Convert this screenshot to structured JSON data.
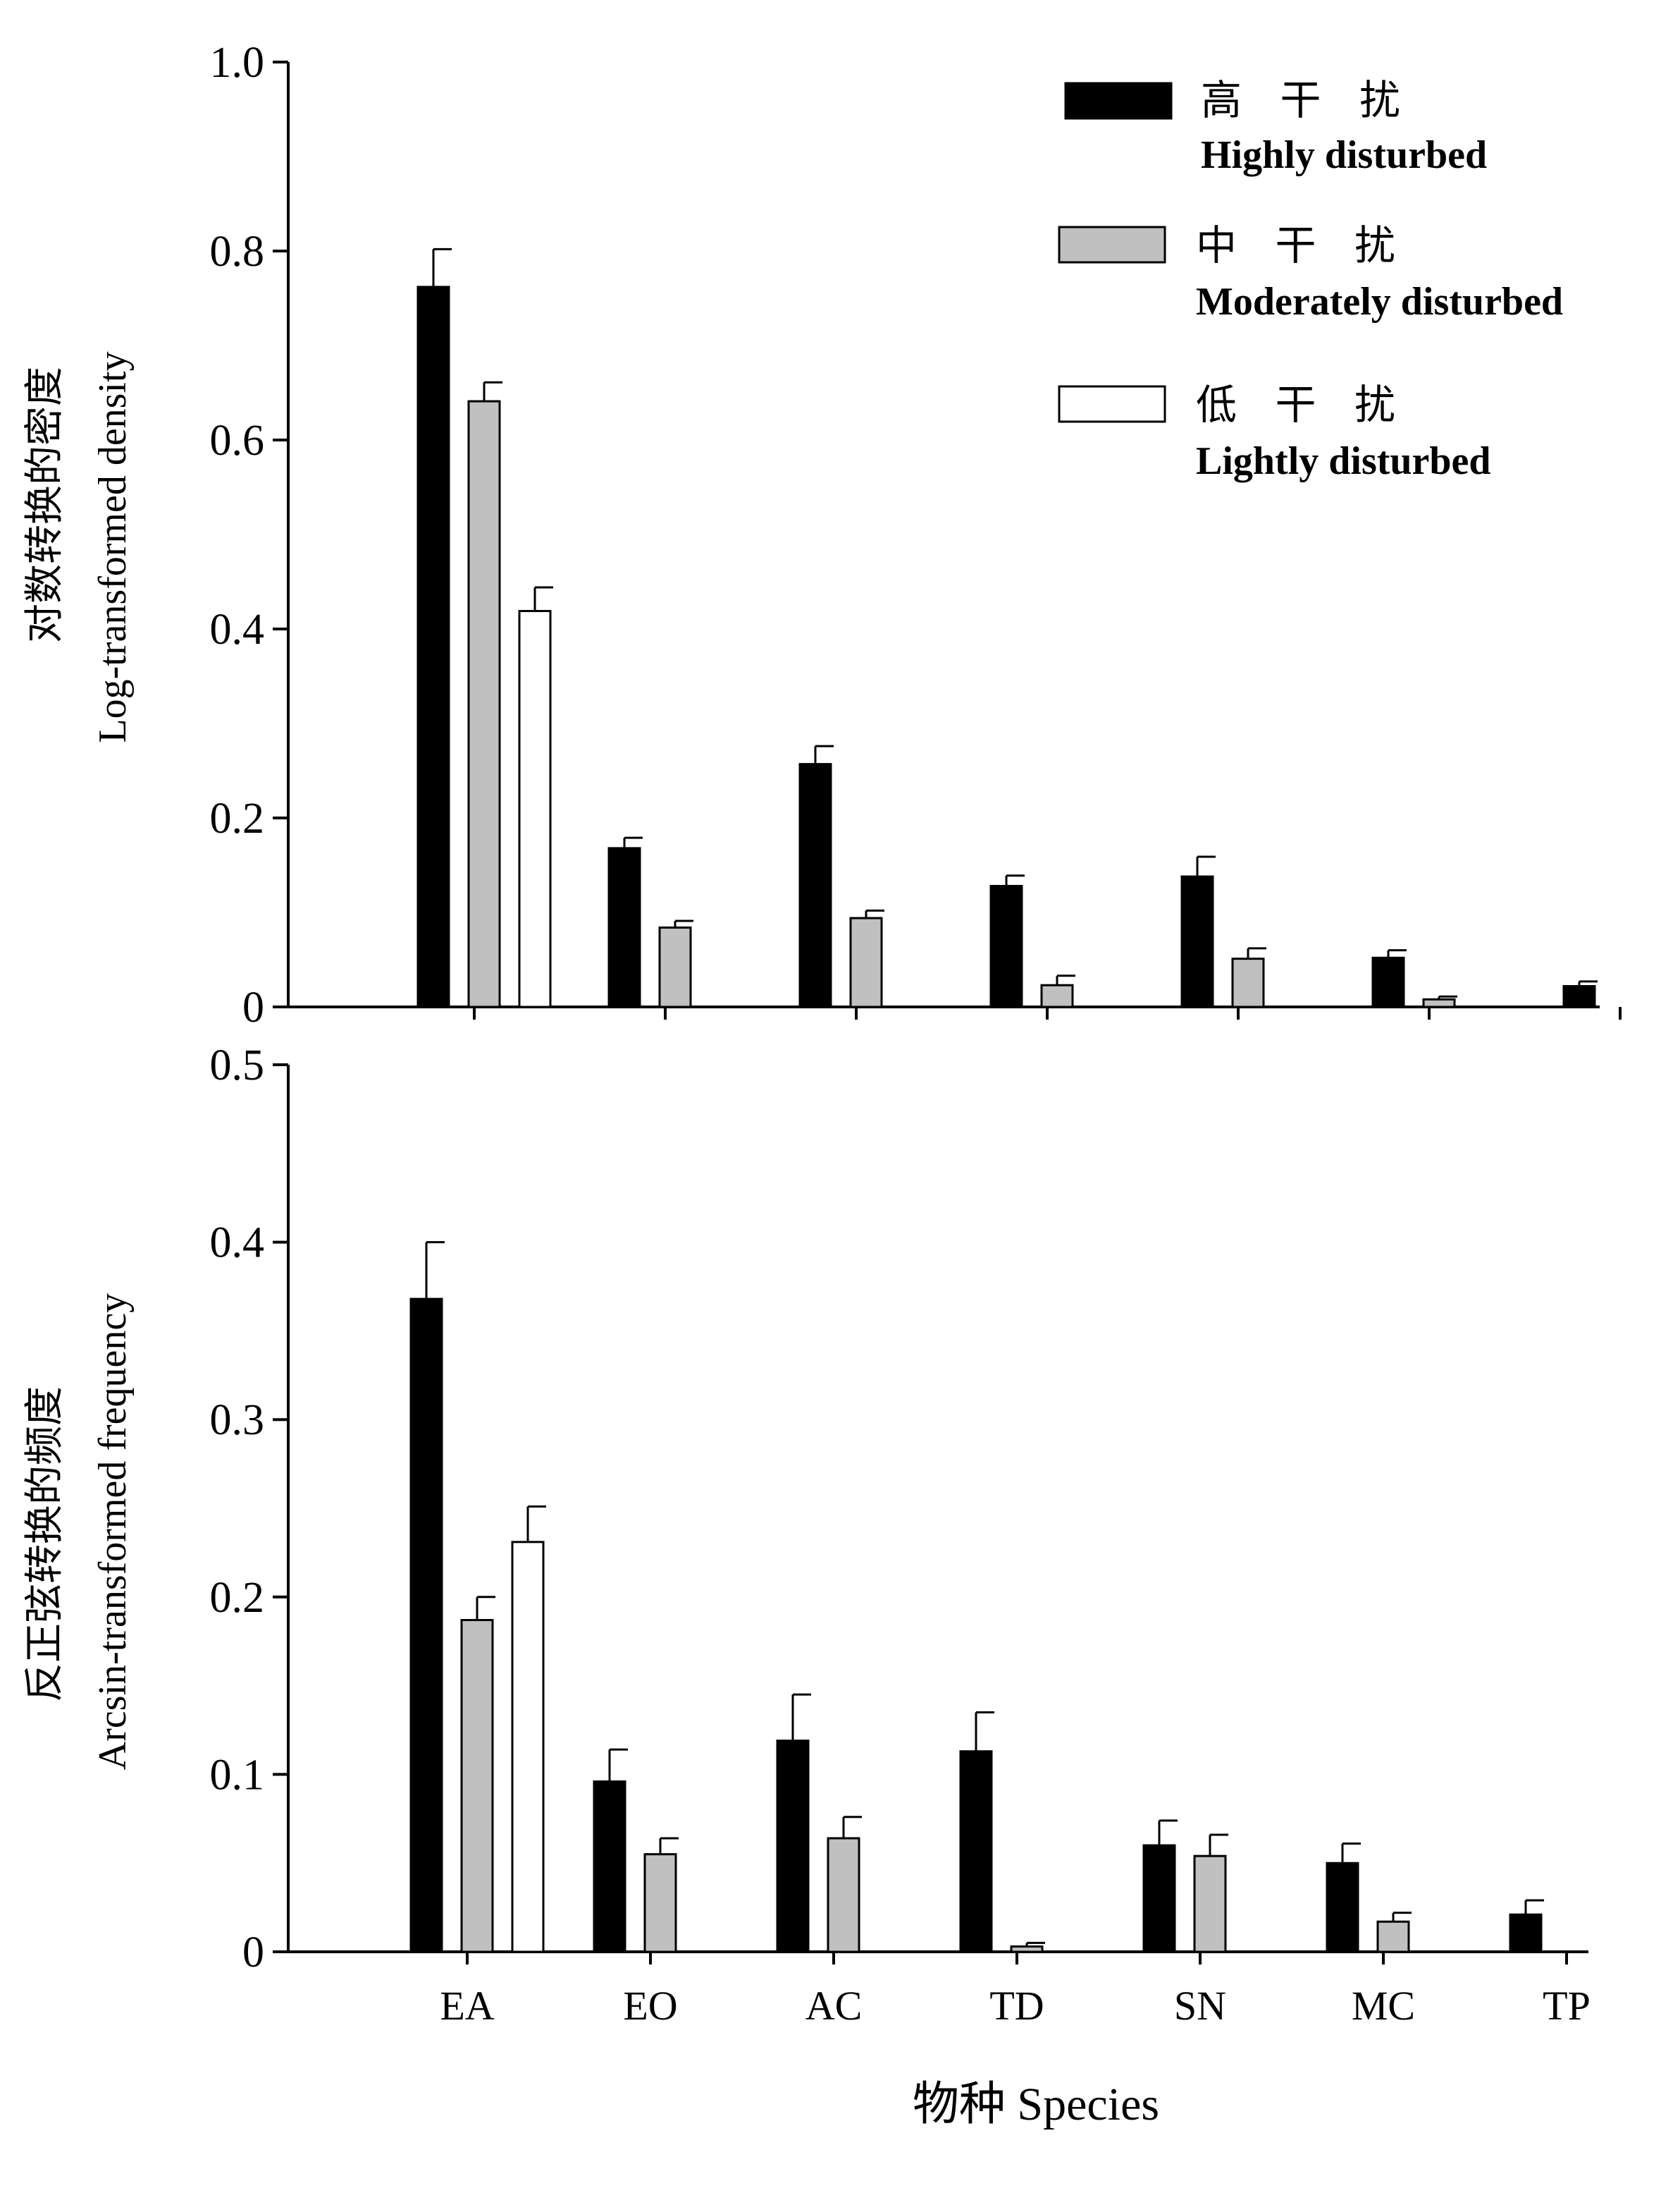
{
  "legend": [
    {
      "cn": "高 干 扰",
      "en": "Highly disturbed"
    },
    {
      "cn": "中 干 扰",
      "en": "Moderately disturbed"
    },
    {
      "cn": "低 干 扰",
      "en": "Lightly disturbed"
    }
  ],
  "xlabel": "物种 Species",
  "chart_data": [
    {
      "type": "bar",
      "ylabel_cn": "对数转换的密度",
      "ylabel_en": "Log-transformed density",
      "ylim": [
        0,
        1.0
      ],
      "yticks": [
        0,
        0.2,
        0.4,
        0.6,
        0.8,
        1.0
      ],
      "ytick_labels": [
        "0",
        "0.2",
        "0.4",
        "0.6",
        "0.8",
        "1.0"
      ],
      "categories": [
        "EA",
        "EO",
        "AC",
        "TD",
        "SN",
        "MC",
        "TP"
      ],
      "series": [
        {
          "name": "Highly disturbed",
          "color": "#000000",
          "values": [
            0.762,
            0.168,
            0.257,
            0.128,
            0.138,
            0.052,
            0.022
          ],
          "errors": [
            0.04,
            0.011,
            0.019,
            0.011,
            0.021,
            0.008,
            0.005
          ]
        },
        {
          "name": "Moderately disturbed",
          "color": "#c0c0c0",
          "values": [
            0.641,
            0.084,
            0.094,
            0.023,
            0.051,
            0.008,
            null
          ],
          "errors": [
            0.02,
            0.007,
            0.008,
            0.01,
            0.011,
            0.003,
            null
          ]
        },
        {
          "name": "Lightly disturbed",
          "color": "#ffffff",
          "values": [
            0.419,
            null,
            null,
            null,
            null,
            null,
            null
          ],
          "errors": [
            0.025,
            null,
            null,
            null,
            null,
            null,
            null
          ]
        }
      ]
    },
    {
      "type": "bar",
      "ylabel_cn": "反正弦转换的频度",
      "ylabel_en": "Arcsin-transformed frequency",
      "ylim": [
        0,
        0.5
      ],
      "yticks": [
        0,
        0.1,
        0.2,
        0.3,
        0.4,
        0.5
      ],
      "ytick_labels": [
        "0",
        "0.1",
        "0.2",
        "0.3",
        "0.4",
        "0.5"
      ],
      "categories": [
        "EA",
        "EO",
        "AC",
        "TD",
        "SN",
        "MC",
        "TP"
      ],
      "series": [
        {
          "name": "Highly disturbed",
          "color": "#000000",
          "values": [
            0.368,
            0.096,
            0.119,
            0.113,
            0.06,
            0.05,
            0.021
          ],
          "errors": [
            0.032,
            0.018,
            0.026,
            0.022,
            0.014,
            0.011,
            0.008
          ]
        },
        {
          "name": "Moderately disturbed",
          "color": "#c0c0c0",
          "values": [
            0.187,
            0.055,
            0.064,
            0.003,
            0.054,
            0.017,
            null
          ],
          "errors": [
            0.013,
            0.009,
            0.012,
            0.002,
            0.012,
            0.005,
            null
          ]
        },
        {
          "name": "Lightly disturbed",
          "color": "#ffffff",
          "values": [
            0.231,
            null,
            null,
            null,
            null,
            null,
            null
          ],
          "errors": [
            0.02,
            null,
            null,
            null,
            null,
            null,
            null
          ]
        }
      ]
    }
  ]
}
